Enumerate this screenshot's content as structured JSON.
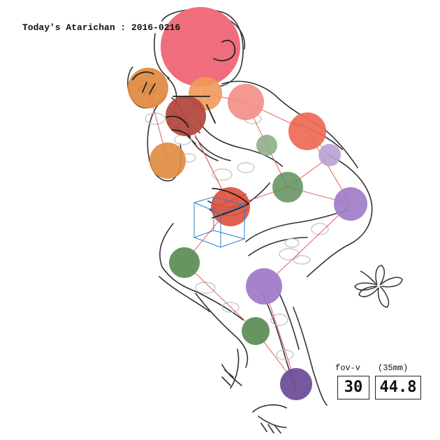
{
  "title": "Today's Atarichan : 2016-0216",
  "fov": {
    "label": "fov-v",
    "unit_label": "(35mm)",
    "vertical_value": "30",
    "equivalent_value": "44.8"
  },
  "colors": {
    "head": "#f06d7d",
    "arm_orange": "#e0893f",
    "red_dark": "#b44a3f",
    "salmon": "#f28e86",
    "coral": "#ee6a55",
    "green": "#5e8f5a",
    "green_light": "#8fae8a",
    "purple": "#a07cc8",
    "purple_light": "#b9a2d2",
    "purple_dark": "#6f4f9a",
    "bone_line": "#e05050",
    "gizmo": "#2a7fd0"
  }
}
